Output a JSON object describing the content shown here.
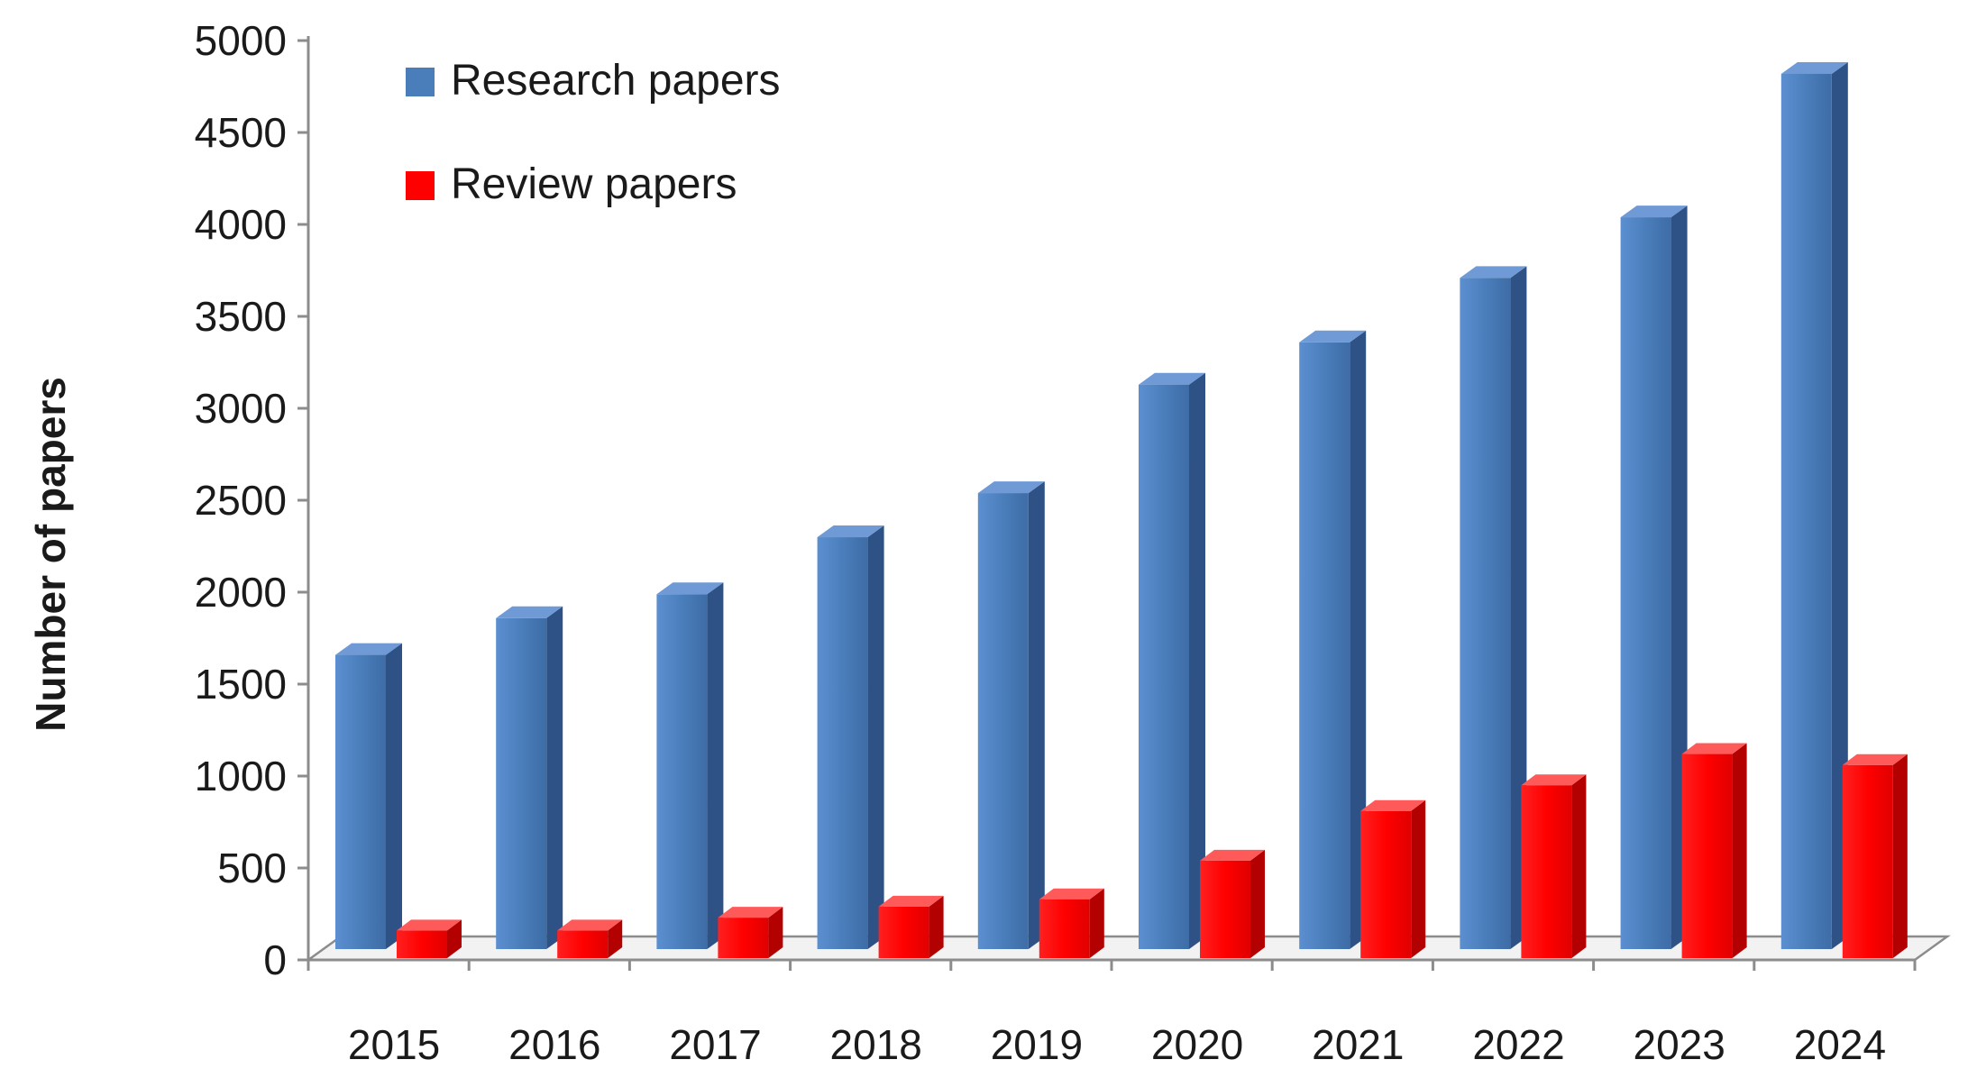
{
  "chart_data": {
    "type": "bar",
    "title": "",
    "xlabel": "",
    "ylabel": "Number of papers",
    "ylim": [
      0,
      5000
    ],
    "yticks": [
      0,
      500,
      1000,
      1500,
      2000,
      2500,
      3000,
      3500,
      4000,
      4500,
      5000
    ],
    "categories": [
      "2015",
      "2016",
      "2017",
      "2018",
      "2019",
      "2020",
      "2021",
      "2022",
      "2023",
      "2024"
    ],
    "legend_position": "top-left",
    "grid": false,
    "series": [
      {
        "name": "Research papers",
        "color": "#4a7ebb",
        "values": [
          1600,
          1800,
          1930,
          2240,
          2480,
          3070,
          3300,
          3650,
          3980,
          4760
        ]
      },
      {
        "name": "Review papers",
        "color": "#ff0000",
        "values": [
          150,
          150,
          220,
          280,
          320,
          530,
          800,
          940,
          1110,
          1050
        ]
      }
    ]
  }
}
